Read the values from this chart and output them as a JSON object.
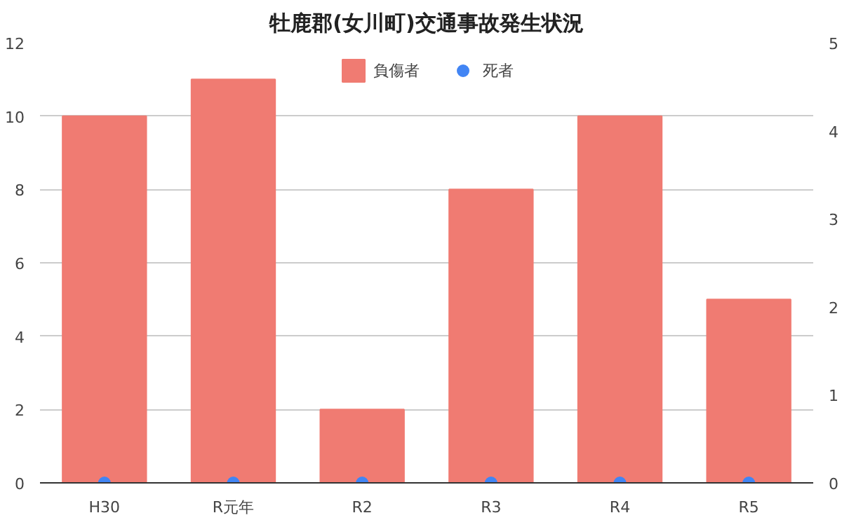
{
  "chart_data": {
    "type": "bar",
    "title": "牡鹿郡(女川町)交通事故発生状況",
    "categories": [
      "H30",
      "R元年",
      "R2",
      "R3",
      "R4",
      "R5"
    ],
    "series": [
      {
        "name": "負傷者",
        "color": "#f07b72",
        "values": [
          10,
          11,
          2,
          8,
          10,
          5
        ]
      },
      {
        "name": "死者",
        "color": "#4285f4",
        "type": "scatter",
        "values": [
          0,
          0,
          0,
          0,
          0,
          0
        ]
      }
    ],
    "ylim": [
      0,
      12
    ],
    "yticks": [
      0,
      2,
      4,
      6,
      8,
      10,
      12
    ],
    "y2lim": [
      0,
      5
    ],
    "y2ticks": [
      0,
      1,
      2,
      3,
      4,
      5
    ],
    "grid": "y",
    "legend": "top",
    "marker": "circle"
  }
}
